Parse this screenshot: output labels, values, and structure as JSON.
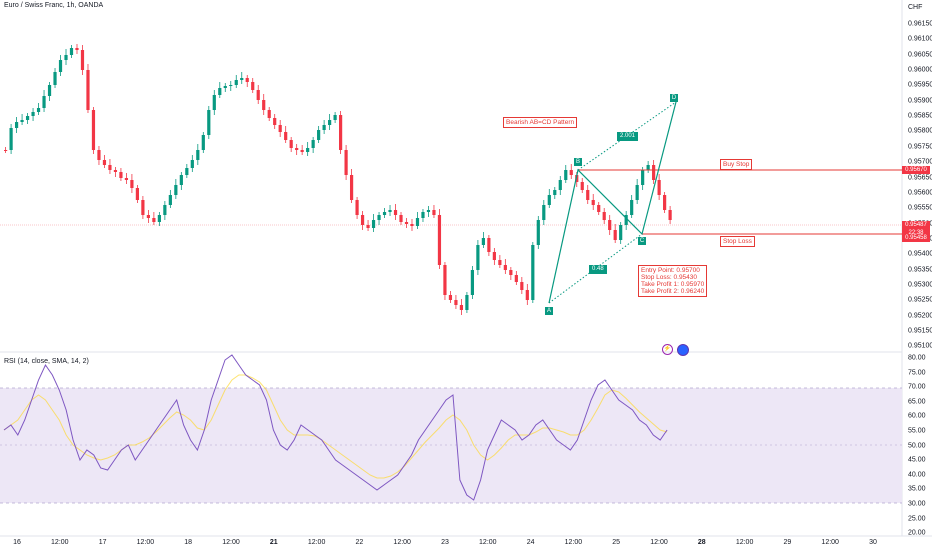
{
  "header": {
    "title": "Euro / Swiss Franc, 1h, OANDA",
    "currency": "CHF"
  },
  "indicator": {
    "title": "RSI (14, close, SMA, 14, 2)"
  },
  "price_axis": [
    "0.96150",
    "0.96100",
    "0.96050",
    "0.96000",
    "0.95950",
    "0.95900",
    "0.95850",
    "0.95800",
    "0.95750",
    "0.95700",
    "0.95650",
    "0.95600",
    "0.95550",
    "0.95500",
    "0.95450",
    "0.95400",
    "0.95350",
    "0.95300",
    "0.95250",
    "0.95200",
    "0.95150",
    "0.95100"
  ],
  "rsi_axis": [
    "80.00",
    "75.00",
    "70.00",
    "65.00",
    "60.00",
    "55.00",
    "50.00",
    "45.00",
    "40.00",
    "35.00",
    "30.00",
    "25.00",
    "20.00"
  ],
  "time_axis": [
    {
      "label": "16",
      "bold": false
    },
    {
      "label": "12:00",
      "bold": false
    },
    {
      "label": "17",
      "bold": false
    },
    {
      "label": "12:00",
      "bold": false
    },
    {
      "label": "18",
      "bold": false
    },
    {
      "label": "12:00",
      "bold": false
    },
    {
      "label": "21",
      "bold": true
    },
    {
      "label": "12:00",
      "bold": false
    },
    {
      "label": "22",
      "bold": false
    },
    {
      "label": "12:00",
      "bold": false
    },
    {
      "label": "23",
      "bold": false
    },
    {
      "label": "12:00",
      "bold": false
    },
    {
      "label": "24",
      "bold": false
    },
    {
      "label": "12:00",
      "bold": false
    },
    {
      "label": "25",
      "bold": false
    },
    {
      "label": "12:00",
      "bold": false
    },
    {
      "label": "28",
      "bold": true
    },
    {
      "label": "12:00",
      "bold": false
    },
    {
      "label": "29",
      "bold": false
    },
    {
      "label": "12:00",
      "bold": false
    },
    {
      "label": "30",
      "bold": false
    }
  ],
  "price_tags": {
    "buy_stop": "0.95670",
    "current": "0.95487",
    "countdown": "22:38",
    "stop_loss": "0.95458"
  },
  "pattern": {
    "title": "Bearish AB=CD Pattern",
    "points": [
      "A",
      "B",
      "C",
      "D"
    ],
    "ratio_bc": "0.48",
    "ratio_cd": "2.001",
    "buy_stop_label": "Buy Stop",
    "stop_loss_label": "Stop Loss",
    "notes": [
      "Entry Point: 0.95700",
      "Stop Loss: 0.95430",
      "Take Profit 1: 0.95970",
      "Take Profit 2: 0.96240"
    ]
  },
  "colors": {
    "up": "#089981",
    "down": "#f23645",
    "rsi_line": "#7e57c2",
    "rsi_ma": "#fdd835",
    "rsi_band": "#ede7f6",
    "annotation": "#e53935"
  }
}
